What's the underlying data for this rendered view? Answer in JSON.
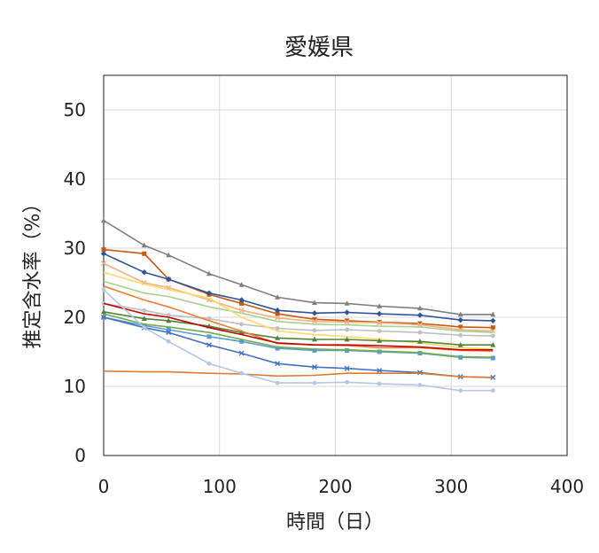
{
  "chart_data": {
    "type": "line",
    "title": "愛媛県",
    "xlabel": "時間（日）",
    "ylabel": "推定含水率（%）",
    "xlim": [
      0,
      400
    ],
    "ylim": [
      0,
      55
    ],
    "xticks": [
      0,
      100,
      200,
      300,
      400
    ],
    "yticks": [
      0,
      10,
      20,
      30,
      40,
      50
    ],
    "grid": true,
    "legend": "none",
    "series": [
      {
        "color": "#7f7f7f",
        "marker": "triangle",
        "x": [
          0,
          35,
          56,
          91,
          119,
          150,
          182,
          210,
          238,
          273,
          308,
          336
        ],
        "y": [
          34.0,
          30.4,
          29.0,
          26.3,
          24.7,
          22.9,
          22.1,
          22.0,
          21.6,
          21.3,
          20.4,
          20.4
        ]
      },
      {
        "color": "#c55a11",
        "marker": "square",
        "x": [
          0,
          35,
          56,
          91,
          119,
          150,
          182,
          210,
          238,
          273,
          308,
          336
        ],
        "y": [
          29.8,
          29.2,
          25.5,
          23.3,
          22.0,
          20.5,
          19.7,
          19.5,
          19.3,
          19.1,
          18.6,
          18.5
        ]
      },
      {
        "color": "#2f5597",
        "marker": "diamond",
        "x": [
          0,
          35,
          56,
          91,
          119,
          150,
          182,
          210,
          238,
          273,
          308,
          336
        ],
        "y": [
          29.2,
          26.5,
          25.5,
          23.5,
          22.5,
          21.0,
          20.6,
          20.7,
          20.5,
          20.3,
          19.6,
          19.5
        ]
      },
      {
        "color": "#f4b183",
        "marker": "cross",
        "x": [
          0,
          35,
          56,
          91,
          119,
          150,
          182,
          210,
          238,
          273,
          308,
          336
        ],
        "y": [
          27.8,
          25.0,
          24.3,
          22.5,
          21.0,
          19.9,
          19.4,
          19.3,
          19.2,
          18.9,
          18.2,
          18.0
        ]
      },
      {
        "color": "#a9d18e",
        "marker": "none",
        "x": [
          0,
          35,
          56,
          91,
          119,
          150,
          182,
          210,
          238,
          273,
          308,
          336
        ],
        "y": [
          25.2,
          23.5,
          23.0,
          21.5,
          20.6,
          19.4,
          19.0,
          18.9,
          18.7,
          18.6,
          18.0,
          17.8
        ]
      },
      {
        "color": "#bfbfbf",
        "marker": "circle",
        "x": [
          0,
          35,
          56,
          91,
          119,
          150,
          182,
          210,
          238,
          273,
          308,
          336
        ],
        "y": [
          22.0,
          21.0,
          20.3,
          19.8,
          19.0,
          18.4,
          18.1,
          18.2,
          18.0,
          17.8,
          17.4,
          17.3
        ]
      },
      {
        "color": "#ffd966",
        "marker": "none",
        "x": [
          0,
          35,
          56,
          91,
          119,
          150,
          182,
          210,
          238,
          273,
          308,
          336
        ],
        "y": [
          26.5,
          24.8,
          24.0,
          22.8,
          20.0,
          18.0,
          17.5,
          17.2,
          16.8,
          16.3,
          15.6,
          15.4
        ]
      },
      {
        "color": "#548235",
        "marker": "triangle",
        "x": [
          0,
          35,
          56,
          91,
          119,
          150,
          182,
          210,
          238,
          273,
          308,
          336
        ],
        "y": [
          20.8,
          19.8,
          19.5,
          18.7,
          17.8,
          17.0,
          16.8,
          16.8,
          16.6,
          16.5,
          16.0,
          16.0
        ]
      },
      {
        "color": "#ed7d31",
        "marker": "none",
        "x": [
          0,
          35,
          56,
          91,
          119,
          150,
          182,
          210,
          238,
          273,
          308,
          336
        ],
        "y": [
          24.5,
          22.5,
          21.5,
          19.5,
          18.0,
          16.2,
          16.0,
          15.9,
          15.6,
          15.6,
          15.2,
          15.1
        ]
      },
      {
        "color": "#c00000",
        "marker": "none",
        "x": [
          0,
          35,
          56,
          91,
          119,
          150,
          182,
          210,
          238,
          273,
          308,
          336
        ],
        "y": [
          22.0,
          20.5,
          20.0,
          18.5,
          17.5,
          16.3,
          16.0,
          16.0,
          15.9,
          15.7,
          15.3,
          15.3
        ]
      },
      {
        "color": "#5b9bd5",
        "marker": "square",
        "x": [
          0,
          35,
          56,
          91,
          119,
          150,
          182,
          210,
          238,
          273,
          308,
          336
        ],
        "y": [
          20.0,
          18.8,
          18.2,
          17.2,
          16.5,
          15.5,
          15.2,
          15.2,
          15.0,
          14.8,
          14.2,
          14.1
        ]
      },
      {
        "color": "#70ad47",
        "marker": "none",
        "x": [
          0,
          35,
          56,
          91,
          119,
          150,
          182,
          210,
          238,
          273,
          308,
          336
        ],
        "y": [
          20.5,
          19.0,
          18.6,
          17.8,
          16.8,
          15.7,
          15.4,
          15.3,
          15.1,
          14.9,
          14.3,
          14.2
        ]
      },
      {
        "color": "#4472c4",
        "marker": "cross",
        "x": [
          0,
          35,
          56,
          91,
          119,
          150,
          182,
          210,
          238,
          273,
          308,
          336
        ],
        "y": [
          20.0,
          18.5,
          17.8,
          16.0,
          14.8,
          13.3,
          12.8,
          12.6,
          12.3,
          12.0,
          11.4,
          11.3
        ]
      },
      {
        "color": "#e07a2e",
        "marker": "none",
        "x": [
          0,
          35,
          56,
          91,
          119,
          150,
          182,
          210,
          238,
          273,
          308,
          336
        ],
        "y": [
          12.2,
          12.1,
          12.1,
          11.9,
          11.8,
          11.5,
          11.6,
          11.9,
          11.9,
          11.9,
          11.4,
          11.3
        ]
      },
      {
        "color": "#b4c7e7",
        "marker": "circle",
        "x": [
          0,
          35,
          56,
          91,
          119,
          150,
          182,
          210,
          238,
          273,
          308,
          336
        ],
        "y": [
          24.0,
          18.5,
          16.5,
          13.3,
          11.9,
          10.5,
          10.5,
          10.6,
          10.4,
          10.2,
          9.4,
          9.4
        ]
      }
    ]
  }
}
